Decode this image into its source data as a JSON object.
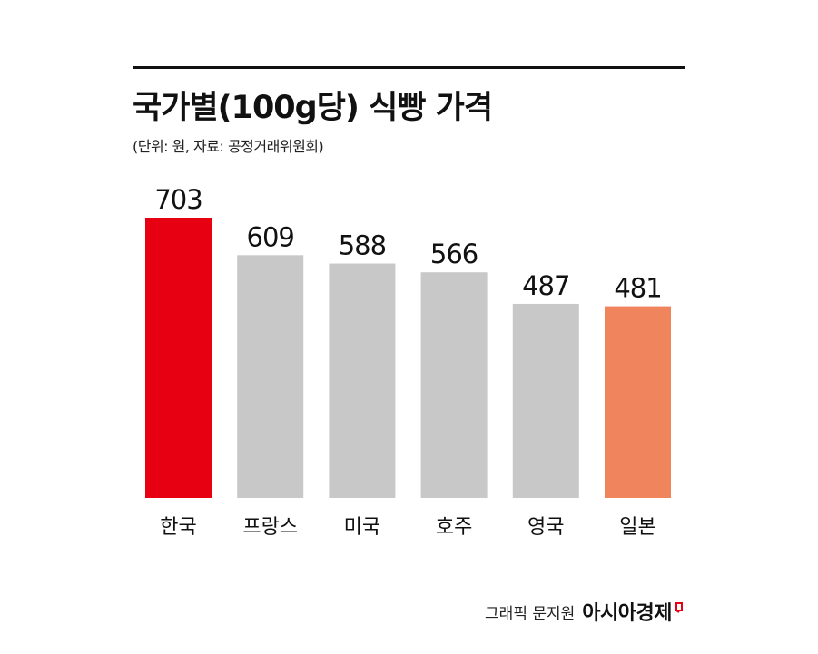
{
  "header": {
    "title": "국가별(100g당) 식빵 가격",
    "subtitle": "(단위: 원, 자료: 공정거래위원회)"
  },
  "credit": {
    "author": "그래픽 문지원",
    "brand": "아시아경제",
    "mark_icon": "red-corner-mark-icon"
  },
  "colors": {
    "highlight": "#e60012",
    "secondary_highlight": "#f0845c",
    "default_bar": "#c8c8c8",
    "text": "#111111"
  },
  "chart_data": {
    "type": "bar",
    "title": "국가별(100g당) 식빵 가격",
    "subtitle": "(단위: 원, 자료: 공정거래위원회)",
    "categories": [
      "한국",
      "프랑스",
      "미국",
      "호주",
      "영국",
      "일본"
    ],
    "values": [
      703,
      609,
      588,
      566,
      487,
      481
    ],
    "bar_colors": [
      "#e60012",
      "#c8c8c8",
      "#c8c8c8",
      "#c8c8c8",
      "#c8c8c8",
      "#f0845c"
    ],
    "ylim": [
      0,
      703
    ],
    "grid": false,
    "legend": "none",
    "data_labels": true
  }
}
